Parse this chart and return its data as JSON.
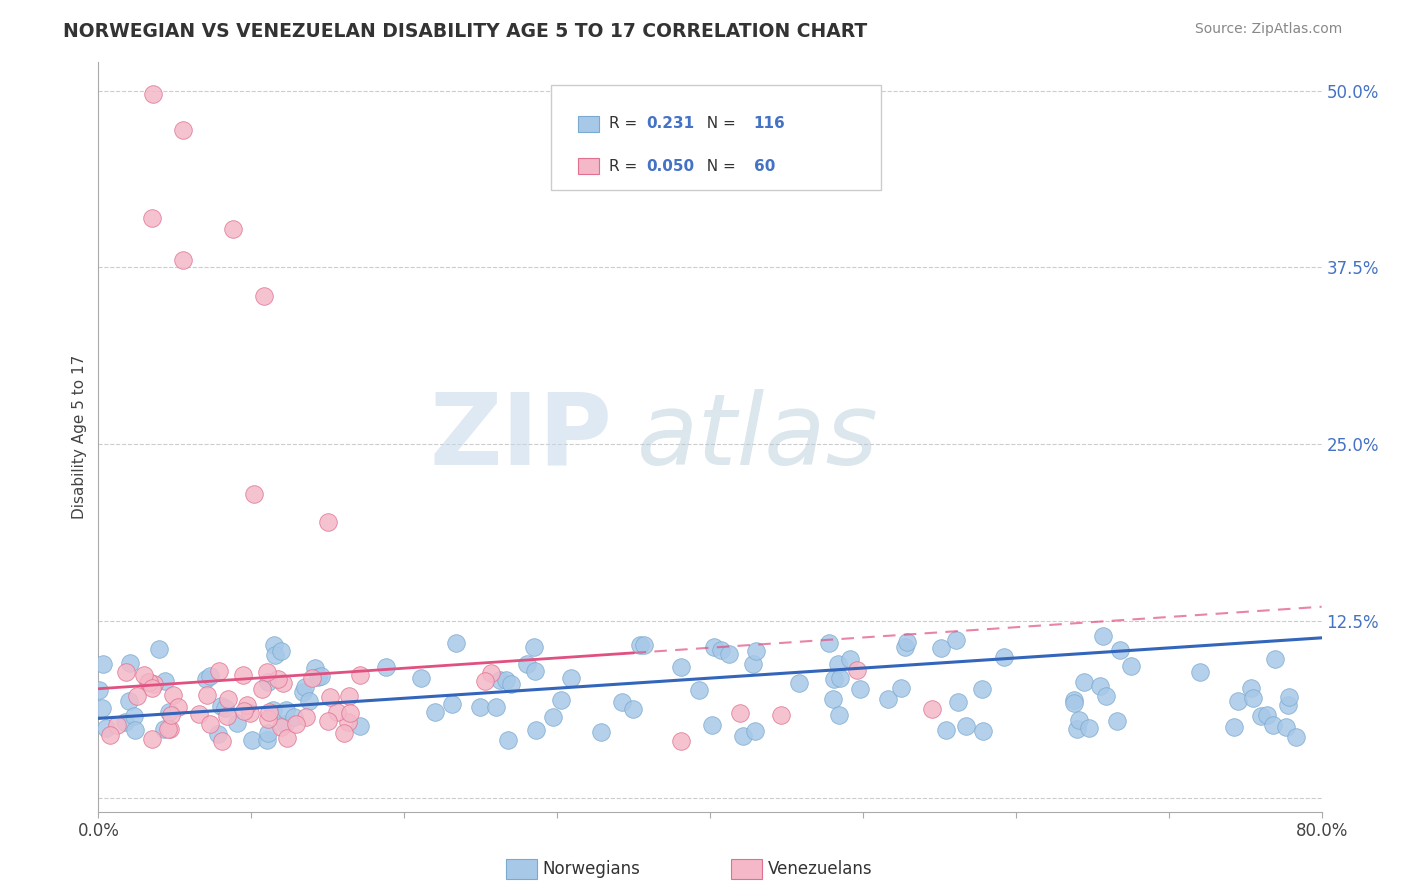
{
  "title": "NORWEGIAN VS VENEZUELAN DISABILITY AGE 5 TO 17 CORRELATION CHART",
  "source": "Source: ZipAtlas.com",
  "ylabel": "Disability Age 5 to 17",
  "xlim": [
    0.0,
    0.8
  ],
  "ylim": [
    -0.01,
    0.52
  ],
  "x_ticks": [
    0.0,
    0.1,
    0.2,
    0.3,
    0.4,
    0.5,
    0.6,
    0.7,
    0.8
  ],
  "x_tick_labels": [
    "0.0%",
    "",
    "",
    "",
    "",
    "",
    "",
    "",
    "80.0%"
  ],
  "y_tick_labels": [
    "",
    "12.5%",
    "25.0%",
    "37.5%",
    "50.0%"
  ],
  "y_ticks": [
    0.0,
    0.125,
    0.25,
    0.375,
    0.5
  ],
  "norwegian_R": 0.231,
  "norwegian_N": 116,
  "venezuelan_R": 0.05,
  "venezuelan_N": 60,
  "norwegian_color": "#a8c8e8",
  "venezuelan_color": "#f4b8c8",
  "norwegian_edge": "#7aaad0",
  "venezuelan_edge": "#e07090",
  "trend_norwegian_color": "#3366bb",
  "trend_venezuelan_color": "#e05080",
  "background_color": "#ffffff",
  "grid_color": "#cccccc",
  "watermark_zip": "ZIP",
  "watermark_atlas": "atlas",
  "legend_nor_text": "R =  0.231   N = 116",
  "legend_ven_text": "R = 0.050   N = 60",
  "nor_R_val": "0.231",
  "nor_N_val": "116",
  "ven_R_val": "0.050",
  "ven_N_val": "60"
}
